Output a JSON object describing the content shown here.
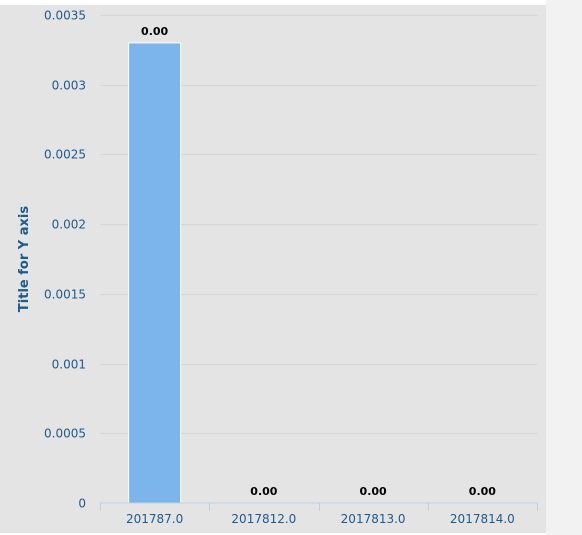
{
  "chart_data": {
    "type": "bar",
    "categories": [
      "201787.0",
      "2017812.0",
      "2017813.0",
      "2017814.0"
    ],
    "values": [
      0.0033,
      0,
      0,
      0
    ],
    "data_labels": [
      "0.00",
      "0.00",
      "0.00",
      "0.00"
    ],
    "ylabel": "Title for Y axis",
    "ylim": [
      0,
      0.0035
    ],
    "yticks": [
      "0",
      "0.0005",
      "0.001",
      "0.0015",
      "0.002",
      "0.0025",
      "0.003",
      "0.0035"
    ],
    "grid": true,
    "legend": "none",
    "colors": {
      "bar": "#7cb5ec",
      "plot_background": "#e4e4e4",
      "axis_text": "#1f5a8c"
    }
  }
}
